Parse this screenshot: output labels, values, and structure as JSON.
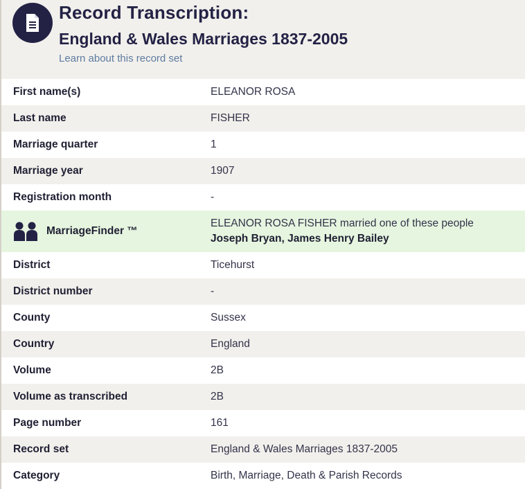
{
  "header": {
    "icon": "document-icon",
    "title": "Record Transcription:",
    "subtitle": "England & Wales Marriages 1837-2005",
    "learn_link": "Learn about this record set"
  },
  "colors": {
    "navy": "#232245",
    "link": "#5c7ba0",
    "highlight_row": "#e6f5df",
    "alt_row": "#f2f0ec"
  },
  "rows_top": [
    {
      "label": "First name(s)",
      "value": "ELEANOR ROSA"
    },
    {
      "label": "Last name",
      "value": "FISHER"
    },
    {
      "label": "Marriage quarter",
      "value": "1"
    },
    {
      "label": "Marriage year",
      "value": "1907"
    },
    {
      "label": "Registration month",
      "value": "-"
    }
  ],
  "marriage_finder": {
    "icon": "people-icon",
    "label": "MarriageFinder ™",
    "text": "ELEANOR ROSA FISHER married one of these people",
    "names": "Joseph Bryan, James Henry Bailey"
  },
  "rows_bottom": [
    {
      "label": "District",
      "value": "Ticehurst"
    },
    {
      "label": "District number",
      "value": "-"
    },
    {
      "label": "County",
      "value": "Sussex"
    },
    {
      "label": "Country",
      "value": "England"
    },
    {
      "label": "Volume",
      "value": "2B"
    },
    {
      "label": "Volume as transcribed",
      "value": "2B"
    },
    {
      "label": "Page number",
      "value": "161"
    },
    {
      "label": "Record set",
      "value": "England & Wales Marriages 1837-2005"
    },
    {
      "label": "Category",
      "value": "Birth, Marriage, Death & Parish Records"
    }
  ]
}
